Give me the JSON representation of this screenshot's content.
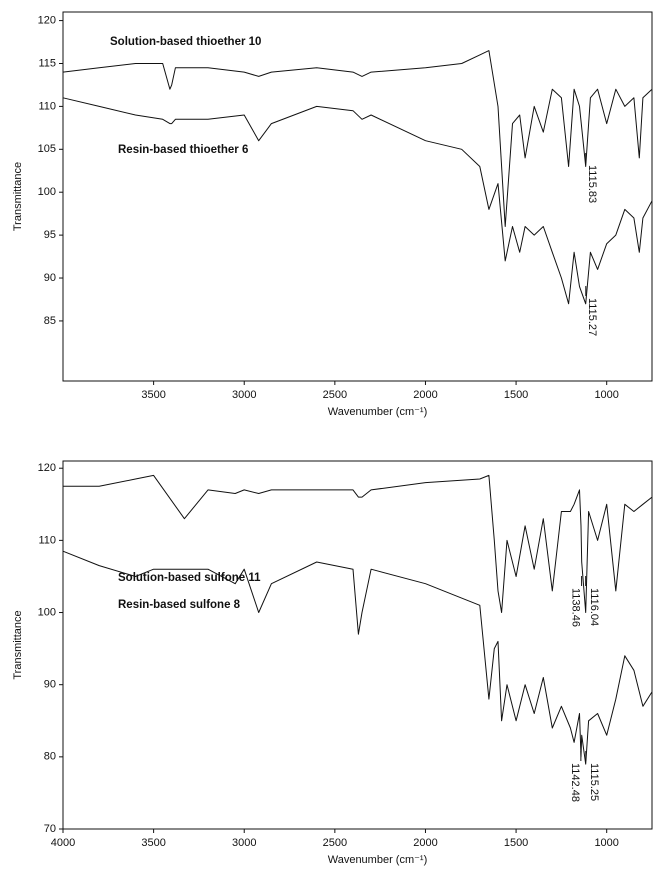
{
  "chart_data": [
    {
      "type": "line",
      "xlabel": "Wavenumber (cm⁻¹)",
      "ylabel": "Transmittance",
      "xlim": [
        4000,
        750
      ],
      "xticks": [
        3500,
        3000,
        2500,
        2000,
        1500,
        1000
      ],
      "ylim": [
        78,
        121
      ],
      "yticks": [
        85,
        90,
        95,
        100,
        105,
        110,
        115,
        120
      ],
      "x": [
        4000,
        3800,
        3600,
        3450,
        3410,
        3400,
        3380,
        3200,
        3000,
        2920,
        2850,
        2600,
        2400,
        2350,
        2300,
        2000,
        1800,
        1700,
        1650,
        1600,
        1560,
        1520,
        1480,
        1450,
        1400,
        1350,
        1300,
        1250,
        1210,
        1180,
        1150,
        1116,
        1090,
        1050,
        1000,
        950,
        900,
        850,
        820,
        800,
        750
      ],
      "series": [
        {
          "name": "Solution-based thioether 10",
          "color": "#111111",
          "values": [
            114,
            114.5,
            115,
            115,
            112,
            112.5,
            114.5,
            114.5,
            114,
            113.5,
            114,
            114.5,
            114,
            113.5,
            114,
            114.5,
            115,
            116,
            116.5,
            110,
            96,
            108,
            109,
            104,
            110,
            107,
            112,
            111,
            103,
            112,
            110,
            103,
            111,
            112,
            108,
            112,
            110,
            111,
            104,
            111,
            112
          ]
        },
        {
          "name": "Resin-based thioether 6",
          "color": "#111111",
          "values": [
            111,
            110,
            109,
            108.5,
            108,
            108,
            108.5,
            108.5,
            109,
            106,
            108,
            110,
            109.5,
            108.5,
            109,
            106,
            105,
            103,
            98,
            101,
            92,
            96,
            93,
            96,
            95,
            96,
            93,
            90,
            87,
            93,
            89,
            87,
            93,
            91,
            94,
            95,
            98,
            97,
            93,
            97,
            99
          ]
        }
      ],
      "annotations": [
        {
          "label": "1115.83",
          "x": 1115.83
        },
        {
          "label": "1115.27",
          "x": 1115.27
        }
      ]
    },
    {
      "type": "line",
      "xlabel": "Wavenumber (cm⁻¹)",
      "ylabel": "Transmittance",
      "xlim": [
        4000,
        750
      ],
      "xticks": [
        4000,
        3500,
        3000,
        2500,
        2000,
        1500,
        1000
      ],
      "ylim": [
        70,
        121
      ],
      "yticks": [
        70,
        80,
        90,
        100,
        110,
        120
      ],
      "x": [
        4000,
        3800,
        3600,
        3500,
        3330,
        3200,
        3050,
        3000,
        2920,
        2850,
        2600,
        2400,
        2370,
        2350,
        2300,
        2000,
        1700,
        1650,
        1620,
        1600,
        1580,
        1550,
        1500,
        1450,
        1400,
        1350,
        1300,
        1250,
        1200,
        1180,
        1150,
        1142,
        1138,
        1116,
        1100,
        1050,
        1000,
        950,
        900,
        850,
        800,
        750
      ],
      "series": [
        {
          "name": "Solution-based sulfone 11",
          "color": "#111111",
          "values": [
            117.5,
            117.5,
            118.5,
            119,
            113,
            117,
            116.5,
            117,
            116.5,
            117,
            117,
            117,
            116,
            116,
            117,
            118,
            118.5,
            119,
            110,
            103,
            100,
            110,
            105,
            112,
            106,
            113,
            103,
            114,
            114,
            115,
            117,
            112,
            107,
            100,
            114,
            110,
            115,
            103,
            115,
            114,
            115,
            116
          ]
        },
        {
          "name": "Resin-based sulfone 8",
          "color": "#111111",
          "values": [
            108.5,
            106.5,
            105,
            106,
            106,
            106,
            104,
            106,
            100,
            104,
            107,
            106,
            97,
            100,
            106,
            104,
            101,
            88,
            95,
            96,
            85,
            90,
            85,
            90,
            86,
            91,
            84,
            87,
            84,
            82,
            86,
            80,
            83,
            79,
            85,
            86,
            83,
            88,
            94,
            92,
            87,
            89
          ]
        }
      ],
      "annotations": [
        {
          "label": "1116.04",
          "x": 1116.04
        },
        {
          "label": "1138.46",
          "x": 1138.46
        },
        {
          "label": "1115.25",
          "x": 1115.25
        },
        {
          "label": "1142.48",
          "x": 1142.48
        }
      ]
    }
  ]
}
